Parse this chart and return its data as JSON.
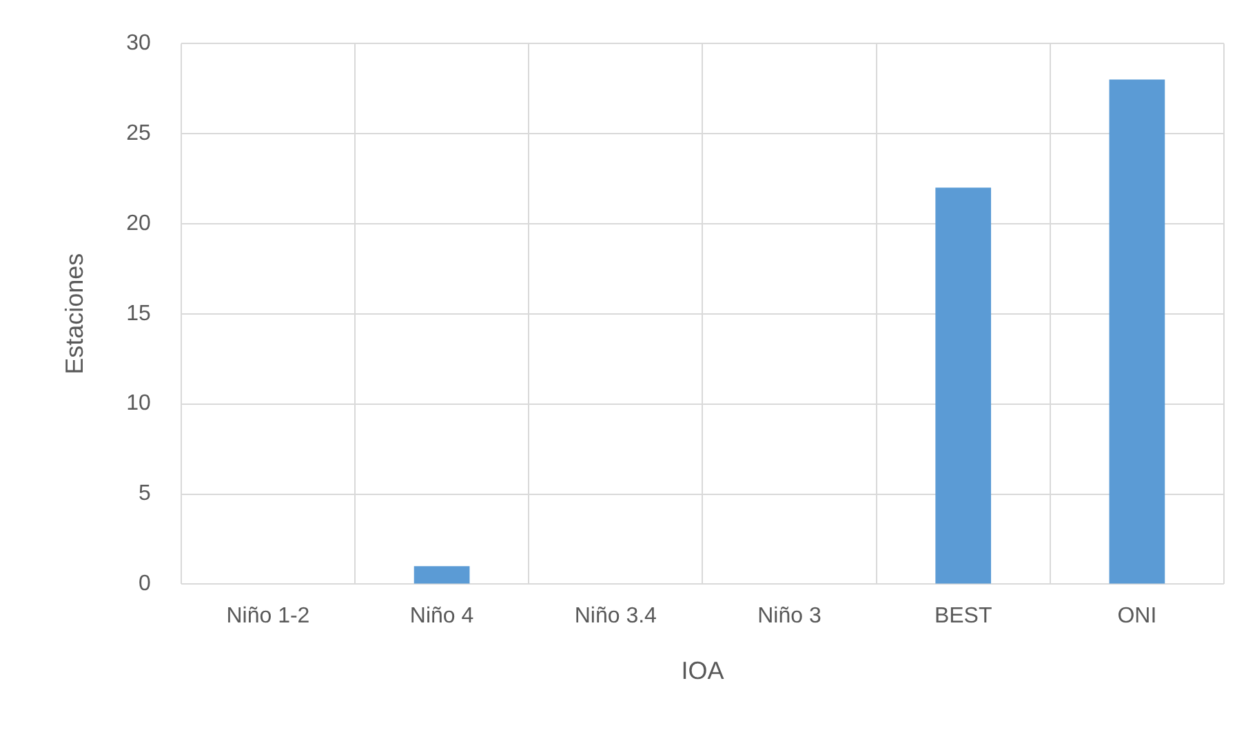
{
  "chart_data": {
    "type": "bar",
    "xlabel": "IOA",
    "ylabel": "Estaciones",
    "categories": [
      "Niño 1-2",
      "Niño 4",
      "Niño 3.4",
      "Niño 3",
      "BEST",
      "ONI"
    ],
    "values": [
      0,
      1,
      0,
      0,
      22,
      28
    ],
    "color": "#5b9bd5",
    "ylim": [
      0,
      30
    ],
    "yticks": [
      0,
      5,
      10,
      15,
      20,
      25,
      30
    ],
    "grid": true
  }
}
